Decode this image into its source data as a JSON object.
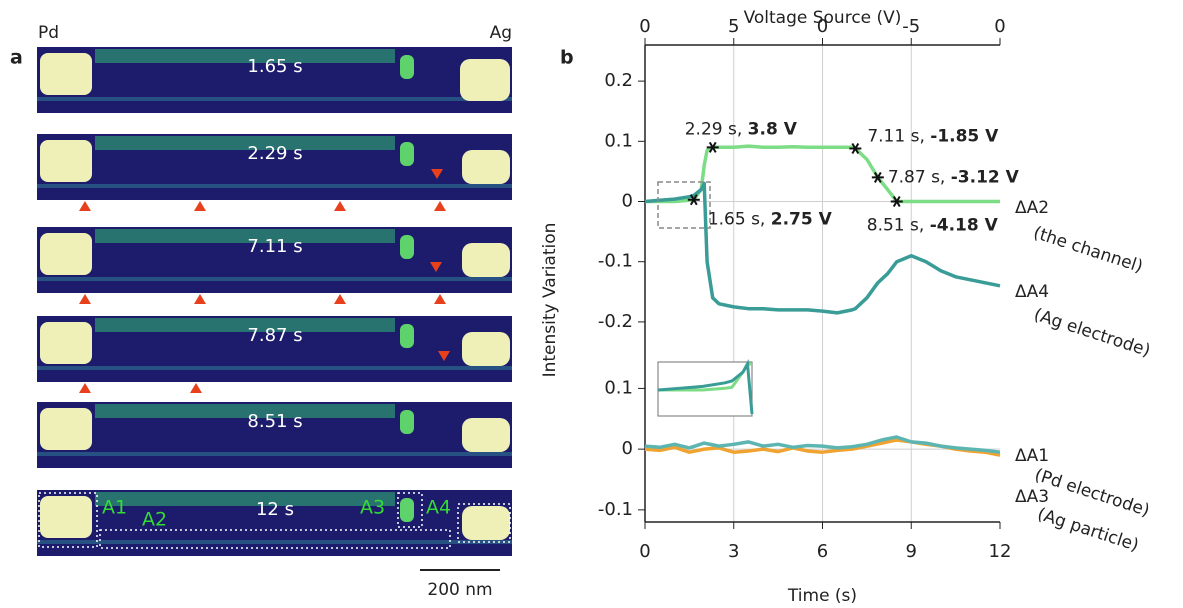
{
  "panel_a": {
    "label": "a",
    "left_electrode": "Pd",
    "right_electrode": "Ag",
    "frames": [
      "1.65 s",
      "2.29 s",
      "7.11 s",
      "7.87 s",
      "8.51 s",
      "12 s"
    ],
    "regions": [
      "A1",
      "A2",
      "A3",
      "A4"
    ],
    "scale_bar": "200 nm"
  },
  "panel_b": {
    "label": "b"
  },
  "chart_data": [
    {
      "type": "line",
      "x2label": "Voltage Source (V)",
      "ylabel": "Intensity Variation",
      "x2ticks": [
        {
          "value": 0,
          "label": "0"
        },
        {
          "value": 3,
          "label": "5"
        },
        {
          "value": 6,
          "label": "0"
        },
        {
          "value": 9,
          "label": "-5"
        },
        {
          "value": 12,
          "label": "0"
        }
      ],
      "xlim": [
        0,
        12
      ],
      "ylim": [
        -0.25,
        0.26
      ],
      "yticks": [
        -0.2,
        -0.1,
        0,
        0.1,
        0.2
      ],
      "grid": true,
      "x": [
        0,
        0.5,
        1,
        1.5,
        1.65,
        1.9,
        2.0,
        2.1,
        2.29,
        2.5,
        3,
        3.5,
        4,
        4.5,
        5,
        5.5,
        6,
        6.5,
        7,
        7.11,
        7.5,
        7.87,
        8.2,
        8.51,
        9,
        9.5,
        10,
        10.5,
        11,
        11.5,
        12
      ],
      "series": [
        {
          "name": "ΔA2",
          "sublabel": "(the channel)",
          "color": "#7ddc86",
          "values": [
            0,
            0,
            0,
            0.002,
            0.003,
            0.02,
            0.06,
            0.085,
            0.09,
            0.09,
            0.09,
            0.092,
            0.09,
            0.09,
            0.091,
            0.09,
            0.09,
            0.09,
            0.09,
            0.088,
            0.07,
            0.04,
            0.02,
            0,
            0,
            0,
            0,
            0,
            0,
            0,
            0
          ]
        },
        {
          "name": "ΔA4",
          "sublabel": "(Ag electrode)",
          "color": "#3a9c97",
          "values": [
            0,
            0.002,
            0.004,
            0.008,
            0.01,
            0.02,
            0.03,
            -0.1,
            -0.16,
            -0.17,
            -0.175,
            -0.178,
            -0.178,
            -0.18,
            -0.18,
            -0.18,
            -0.182,
            -0.185,
            -0.18,
            -0.178,
            -0.16,
            -0.135,
            -0.12,
            -0.1,
            -0.09,
            -0.1,
            -0.115,
            -0.125,
            -0.13,
            -0.135,
            -0.14
          ]
        }
      ],
      "annotations": [
        {
          "index": 4,
          "time": "1.65 s,",
          "voltage": "2.75 V"
        },
        {
          "index": 8,
          "time": "2.29 s,",
          "voltage": "3.8 V"
        },
        {
          "index": 19,
          "time": "7.11 s,",
          "voltage": "-1.85 V"
        },
        {
          "index": 21,
          "time": "7.87 s,",
          "voltage": "-3.12 V"
        },
        {
          "index": 23,
          "time": "8.51 s,",
          "voltage": "-4.18 V"
        }
      ]
    },
    {
      "type": "line",
      "xlabel": "Time (s)",
      "xlim": [
        0,
        12
      ],
      "xticks": [
        0,
        3,
        6,
        9,
        12
      ],
      "ylim": [
        -0.12,
        0.16
      ],
      "yticks": [
        -0.1,
        0,
        0.1
      ],
      "grid": true,
      "x": [
        0,
        0.5,
        1,
        1.5,
        2,
        2.5,
        3,
        3.5,
        4,
        4.5,
        5,
        5.5,
        6,
        6.5,
        7,
        7.5,
        8,
        8.5,
        9,
        9.5,
        10,
        10.5,
        11,
        11.5,
        12
      ],
      "series": [
        {
          "name": "ΔA1",
          "sublabel": "(Pd electrode)",
          "color": "#f0a330",
          "values": [
            0,
            -0.002,
            0.003,
            -0.005,
            0,
            0.002,
            -0.005,
            -0.003,
            0,
            -0.004,
            0.002,
            -0.003,
            -0.005,
            -0.002,
            0,
            0.005,
            0.01,
            0.015,
            0.012,
            0.008,
            0.005,
            0,
            -0.003,
            -0.005,
            -0.01
          ]
        },
        {
          "name": "ΔA3",
          "sublabel": "(Ag particle)",
          "color": "#5db5b2",
          "values": [
            0.005,
            0.003,
            0.008,
            0.002,
            0.01,
            0.005,
            0.008,
            0.012,
            0.005,
            0.008,
            0.003,
            0.006,
            0.005,
            0.002,
            0.004,
            0.008,
            0.015,
            0.02,
            0.012,
            0.01,
            0.005,
            0.002,
            0,
            -0.002,
            -0.005
          ]
        }
      ]
    }
  ]
}
